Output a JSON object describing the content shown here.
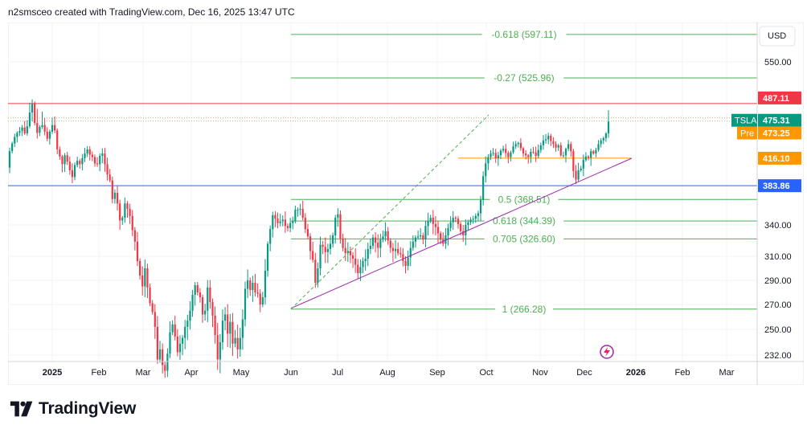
{
  "header": {
    "credit": "n2smsceo created with TradingView.com, Dec 16, 2025 13:47 UTC"
  },
  "brand": {
    "logo_text": "TradingView"
  },
  "chart_data": {
    "type": "candlestick",
    "symbol": "TSLA",
    "currency": "USD",
    "y_ticks": [
      550.0,
      340.0,
      310.0,
      290.0,
      270.0,
      250.0,
      232.0
    ],
    "x_ticks": [
      "2025",
      "Feb",
      "Mar",
      "Apr",
      "May",
      "Jun",
      "Jul",
      "Aug",
      "Sep",
      "Oct",
      "Nov",
      "Dec",
      "2026",
      "Feb",
      "Mar"
    ],
    "price_labels": [
      {
        "name": "resistance",
        "text": "487.11",
        "value": 487.11,
        "color": "#f23645"
      },
      {
        "name": "symbol",
        "text": "TSLA",
        "value_text": "475.31",
        "value": 475.31,
        "color": "#089981"
      },
      {
        "name": "premarket",
        "text": "Pre",
        "value_text": "473.25",
        "value": 473.25,
        "color": "#ff9800"
      },
      {
        "name": "fib-level",
        "text": "416.10",
        "value": 416.1,
        "color": "#ff9800"
      },
      {
        "name": "support",
        "text": "383.86",
        "value": 383.86,
        "color": "#2962ff"
      }
    ],
    "fib_levels": [
      {
        "label": "-0.618 (597.11)",
        "value": 597.11
      },
      {
        "label": "-0.27 (525.96)",
        "value": 525.96
      },
      {
        "label": "0.5 (368.51)",
        "value": 368.51
      },
      {
        "label": "0.618 (344.39)",
        "value": 344.39
      },
      {
        "label": "0.705 (326.60)",
        "value": 326.6
      },
      {
        "label": "1 (266.28)",
        "value": 266.28
      }
    ],
    "colors": {
      "up": "#089981",
      "down": "#f23645",
      "fib": "#4caf50",
      "trend": "#9c27b0"
    },
    "candles": [
      [
        405,
        428
      ],
      [
        428,
        441
      ],
      [
        441,
        452
      ],
      [
        452,
        459
      ],
      [
        459,
        462
      ],
      [
        462,
        468
      ],
      [
        468,
        458
      ],
      [
        458,
        470
      ],
      [
        470,
        481
      ],
      [
        481,
        487
      ],
      [
        487,
        474
      ],
      [
        474,
        459
      ],
      [
        459,
        469
      ],
      [
        469,
        472
      ],
      [
        472,
        461
      ],
      [
        461,
        449
      ],
      [
        449,
        461
      ],
      [
        461,
        472
      ],
      [
        472,
        463
      ],
      [
        463,
        431
      ],
      [
        431,
        419
      ],
      [
        419,
        409
      ],
      [
        409,
        421
      ],
      [
        421,
        412
      ],
      [
        412,
        402
      ],
      [
        402,
        394
      ],
      [
        394,
        408
      ],
      [
        408,
        413
      ],
      [
        413,
        409
      ],
      [
        409,
        416
      ],
      [
        416,
        424
      ],
      [
        424,
        431
      ],
      [
        431,
        422
      ],
      [
        422,
        418
      ],
      [
        418,
        410
      ],
      [
        410,
        409
      ],
      [
        409,
        420
      ],
      [
        420,
        424
      ],
      [
        424,
        409
      ],
      [
        409,
        397
      ],
      [
        397,
        390
      ],
      [
        390,
        369
      ],
      [
        369,
        376
      ],
      [
        376,
        364
      ],
      [
        364,
        345
      ],
      [
        345,
        348
      ],
      [
        348,
        364
      ],
      [
        364,
        358
      ],
      [
        358,
        350
      ],
      [
        350,
        335
      ],
      [
        335,
        324
      ],
      [
        324,
        306
      ],
      [
        306,
        294
      ],
      [
        294,
        285
      ],
      [
        285,
        300
      ],
      [
        300,
        284
      ],
      [
        284,
        271
      ],
      [
        271,
        264
      ],
      [
        264,
        252
      ],
      [
        252,
        229
      ],
      [
        229,
        236
      ],
      [
        236,
        225
      ],
      [
        225,
        221
      ],
      [
        221,
        233
      ],
      [
        233,
        248
      ],
      [
        248,
        254
      ],
      [
        254,
        245
      ],
      [
        245,
        234
      ],
      [
        234,
        240
      ],
      [
        240,
        244
      ],
      [
        244,
        252
      ],
      [
        252,
        257
      ],
      [
        257,
        265
      ],
      [
        265,
        278
      ],
      [
        278,
        286
      ],
      [
        286,
        280
      ],
      [
        280,
        276
      ],
      [
        276,
        262
      ],
      [
        262,
        265
      ],
      [
        265,
        284
      ],
      [
        284,
        272
      ],
      [
        272,
        261
      ],
      [
        261,
        246
      ],
      [
        246,
        229
      ],
      [
        229,
        241
      ],
      [
        241,
        257
      ],
      [
        257,
        262
      ],
      [
        262,
        247
      ],
      [
        247,
        256
      ],
      [
        256,
        240
      ],
      [
        240,
        244
      ],
      [
        244,
        236
      ],
      [
        236,
        244
      ],
      [
        244,
        258
      ],
      [
        258,
        283
      ],
      [
        283,
        290
      ],
      [
        290,
        282
      ],
      [
        282,
        288
      ],
      [
        288,
        280
      ],
      [
        280,
        279
      ],
      [
        279,
        270
      ],
      [
        270,
        276
      ],
      [
        276,
        298
      ],
      [
        298,
        322
      ],
      [
        322,
        336
      ],
      [
        336,
        351
      ],
      [
        351,
        347
      ],
      [
        347,
        342
      ],
      [
        342,
        344
      ],
      [
        344,
        346
      ],
      [
        346,
        339
      ],
      [
        339,
        337
      ],
      [
        337,
        342
      ],
      [
        342,
        344
      ],
      [
        344,
        357
      ],
      [
        357,
        357
      ],
      [
        357,
        358
      ],
      [
        358,
        348
      ],
      [
        348,
        336
      ],
      [
        336,
        329
      ],
      [
        329,
        315
      ],
      [
        315,
        307
      ],
      [
        307,
        288
      ],
      [
        288,
        300
      ],
      [
        300,
        321
      ],
      [
        321,
        319
      ],
      [
        319,
        314
      ],
      [
        314,
        317
      ],
      [
        317,
        322
      ],
      [
        322,
        330
      ],
      [
        330,
        348
      ],
      [
        348,
        352
      ],
      [
        352,
        327
      ],
      [
        327,
        318
      ],
      [
        318,
        313
      ],
      [
        313,
        315
      ],
      [
        315,
        311
      ],
      [
        311,
        308
      ],
      [
        308,
        303
      ],
      [
        303,
        296
      ],
      [
        296,
        301
      ],
      [
        301,
        306
      ],
      [
        306,
        308
      ],
      [
        308,
        317
      ],
      [
        317,
        320
      ],
      [
        320,
        328
      ],
      [
        328,
        323
      ],
      [
        323,
        318
      ],
      [
        318,
        326
      ],
      [
        326,
        329
      ],
      [
        329,
        334
      ],
      [
        334,
        325
      ],
      [
        325,
        318
      ],
      [
        318,
        315
      ],
      [
        315,
        317
      ],
      [
        317,
        313
      ],
      [
        313,
        312
      ],
      [
        312,
        306
      ],
      [
        306,
        302
      ],
      [
        302,
        309
      ],
      [
        309,
        318
      ],
      [
        318,
        324
      ],
      [
        324,
        328
      ],
      [
        328,
        329
      ],
      [
        329,
        330
      ],
      [
        330,
        326
      ],
      [
        326,
        339
      ],
      [
        339,
        344
      ],
      [
        344,
        348
      ],
      [
        348,
        341
      ],
      [
        341,
        338
      ],
      [
        338,
        332
      ],
      [
        332,
        326
      ],
      [
        326,
        322
      ],
      [
        322,
        330
      ],
      [
        330,
        337
      ],
      [
        337,
        343
      ],
      [
        343,
        348
      ],
      [
        348,
        347
      ],
      [
        347,
        341
      ],
      [
        341,
        334
      ],
      [
        334,
        330
      ],
      [
        330,
        340
      ],
      [
        340,
        343
      ],
      [
        343,
        346
      ],
      [
        346,
        347
      ],
      [
        347,
        350
      ],
      [
        350,
        353
      ],
      [
        353,
        368
      ],
      [
        368,
        395
      ],
      [
        395,
        410
      ],
      [
        410,
        418
      ],
      [
        418,
        424
      ],
      [
        424,
        425
      ],
      [
        425,
        416
      ],
      [
        416,
        421
      ],
      [
        421,
        429
      ],
      [
        429,
        432
      ],
      [
        432,
        425
      ],
      [
        425,
        418
      ],
      [
        418,
        426
      ],
      [
        426,
        436
      ],
      [
        436,
        440
      ],
      [
        440,
        442
      ],
      [
        442,
        433
      ],
      [
        433,
        424
      ],
      [
        424,
        421
      ],
      [
        421,
        418
      ],
      [
        418,
        427
      ],
      [
        427,
        426
      ],
      [
        426,
        420
      ],
      [
        420,
        430
      ],
      [
        430,
        438
      ],
      [
        438,
        446
      ],
      [
        446,
        448
      ],
      [
        448,
        454
      ],
      [
        454,
        445
      ],
      [
        445,
        440
      ],
      [
        440,
        434
      ],
      [
        434,
        438
      ],
      [
        438,
        421
      ],
      [
        421,
        421
      ],
      [
        421,
        432
      ],
      [
        432,
        440
      ],
      [
        440,
        428
      ],
      [
        428,
        401
      ],
      [
        401,
        391
      ],
      [
        391,
        402
      ],
      [
        402,
        404
      ],
      [
        404,
        414
      ],
      [
        414,
        419
      ],
      [
        419,
        417
      ],
      [
        417,
        428
      ],
      [
        428,
        424
      ],
      [
        424,
        430
      ],
      [
        430,
        440
      ],
      [
        440,
        446
      ],
      [
        446,
        450
      ],
      [
        450,
        458
      ],
      [
        458,
        475
      ]
    ]
  }
}
